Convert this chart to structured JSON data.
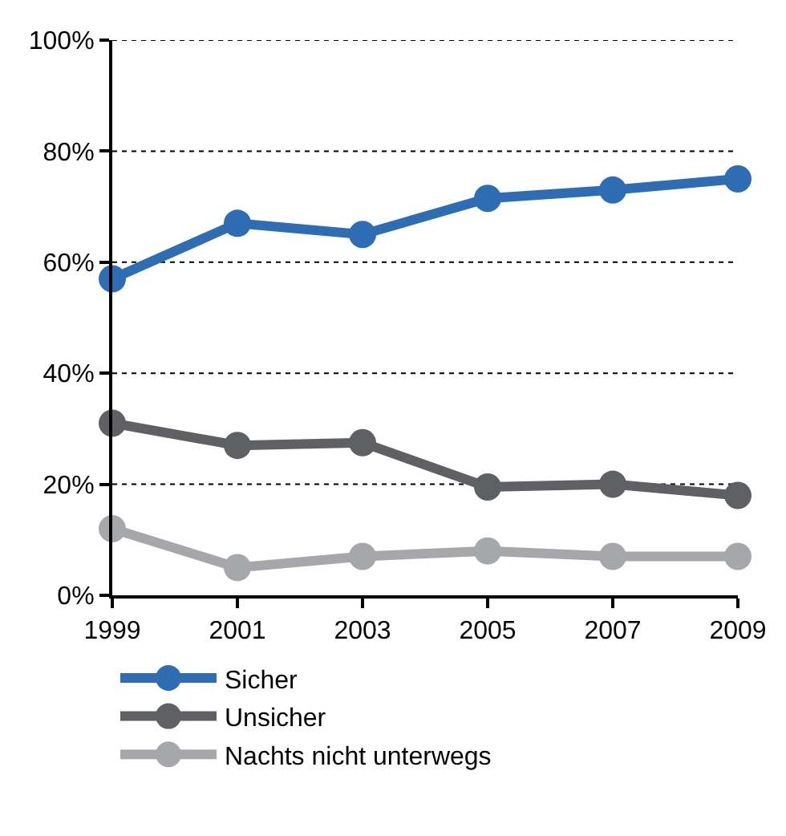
{
  "chart_data": {
    "type": "line",
    "x": [
      1999,
      2001,
      2003,
      2005,
      2007,
      2009
    ],
    "series": [
      {
        "name": "Sicher",
        "color": "#2e6db4",
        "values": [
          57,
          67,
          65,
          71.5,
          73,
          75
        ]
      },
      {
        "name": "Unsicher",
        "color": "#5f6064",
        "values": [
          31,
          27,
          27.5,
          19.5,
          20,
          18
        ]
      },
      {
        "name": "Nachts nicht unterwegs",
        "color": "#a5a7aa",
        "values": [
          12,
          5,
          7,
          8,
          7,
          7
        ]
      }
    ],
    "xlim": [
      1999,
      2009
    ],
    "xticks": [
      1999,
      2001,
      2003,
      2005,
      2007,
      2009
    ],
    "ylim": [
      0,
      100
    ],
    "yticks": [
      {
        "value": 0,
        "label": "0%"
      },
      {
        "value": 20,
        "label": "20%"
      },
      {
        "value": 40,
        "label": "40%"
      },
      {
        "value": 60,
        "label": "60%"
      },
      {
        "value": 80,
        "label": "80%"
      },
      {
        "value": 100,
        "label": "100%"
      }
    ],
    "grid": "y",
    "legend": "bottom",
    "marker": "circle",
    "line_style": "solid"
  }
}
